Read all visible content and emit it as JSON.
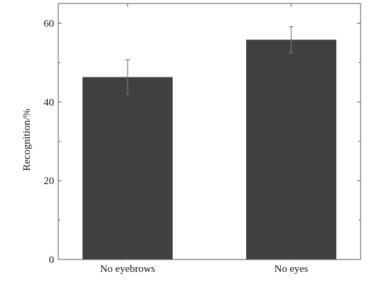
{
  "chart_data": {
    "type": "bar",
    "categories": [
      "No eyebrows",
      "No eyes"
    ],
    "values": [
      46.3,
      55.8
    ],
    "error": [
      4.4,
      3.3
    ],
    "ylabel": "Recognition/%",
    "xlabel": "",
    "ylim": [
      0,
      65
    ],
    "yticks": [
      0,
      20,
      40,
      60
    ],
    "ytick_labels": [
      "0",
      "20",
      "40",
      "60"
    ],
    "grid": false,
    "bar_color": "#404040",
    "error_color": "#777777"
  }
}
